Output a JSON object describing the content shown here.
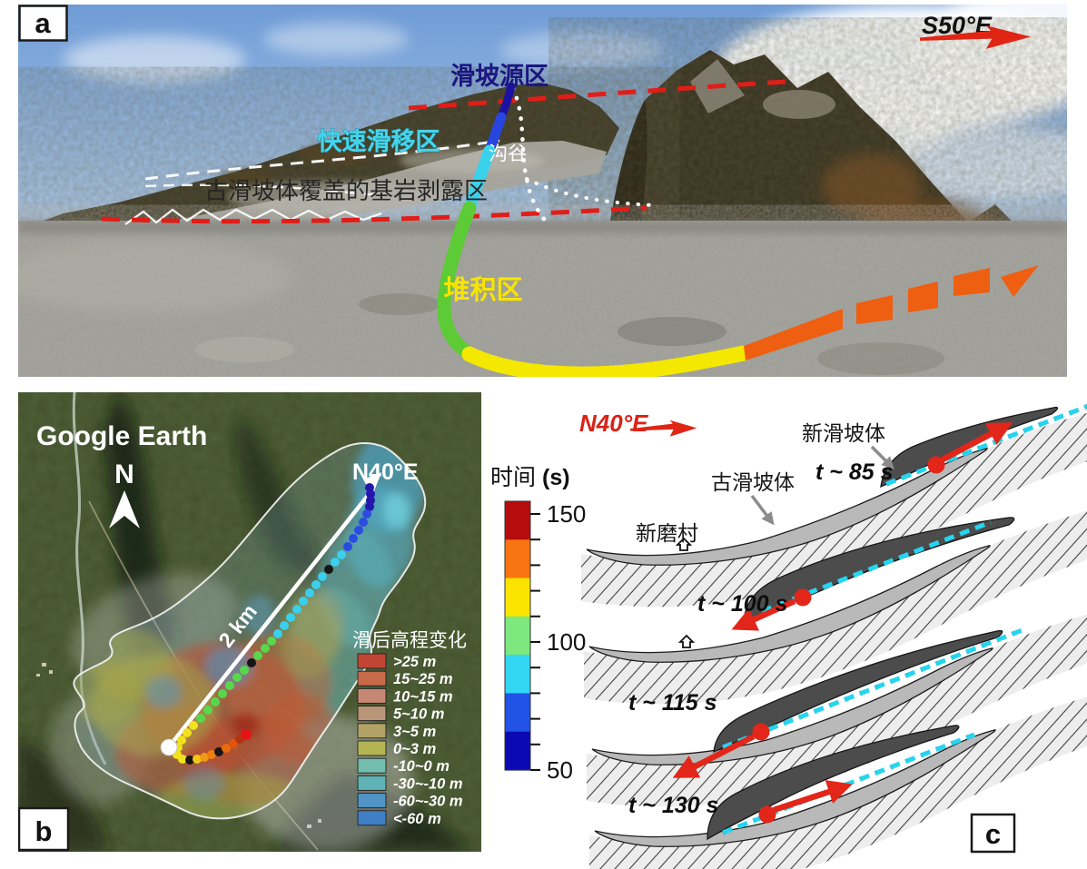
{
  "panel_a": {
    "label": "a",
    "direction_label": "S50°E",
    "annotations": {
      "source_zone": "滑坡源区",
      "rapid_slide_zone": "快速滑移区",
      "gully": "沟谷",
      "bedrock_exposure_zone": "古滑坡体覆盖的基岩剥露区",
      "deposit_zone": "堆积区"
    }
  },
  "panel_b": {
    "label": "b",
    "watermark": "Google Earth",
    "north_label": "N",
    "direction_label": "N40°E",
    "scale_label": "2 km",
    "legend": {
      "title": "滑后高程变化",
      "entries": [
        {
          "label": ">25 m",
          "color": "#c24534"
        },
        {
          "label": "15~25 m",
          "color": "#c66a4a"
        },
        {
          "label": "10~15 m",
          "color": "#c68874"
        },
        {
          "label": "5~10 m",
          "color": "#b99678"
        },
        {
          "label": "3~5 m",
          "color": "#b3a266"
        },
        {
          "label": "0~3 m",
          "color": "#b4b455"
        },
        {
          "label": "-10~0 m",
          "color": "#72bdae"
        },
        {
          "label": "-30~-10 m",
          "color": "#5fb3b4"
        },
        {
          "label": "-60~-30 m",
          "color": "#4f94c4"
        },
        {
          "label": "<-60 m",
          "color": "#3f7fc4"
        }
      ]
    },
    "trajectory_dots": [
      [
        387,
        105,
        "#2517ad"
      ],
      [
        388,
        112,
        "#2517ad"
      ],
      [
        388,
        119,
        "#2517ad"
      ],
      [
        387,
        126,
        "#2517ad"
      ],
      [
        384,
        134,
        "#2b4ce0"
      ],
      [
        380,
        143,
        "#2b4ce0"
      ],
      [
        375,
        152,
        "#2b4ce0"
      ],
      [
        369,
        161,
        "#2b4ce0"
      ],
      [
        363,
        170,
        "#2b4ce0"
      ],
      [
        356,
        179,
        "#38d0ee"
      ],
      [
        349,
        187,
        "#38d0ee"
      ],
      [
        342,
        195,
        "#161616"
      ],
      [
        335,
        203,
        "#38d0ee"
      ],
      [
        328,
        212,
        "#38d0ee"
      ],
      [
        321,
        221,
        "#38d0ee"
      ],
      [
        314,
        230,
        "#38d0ee"
      ],
      [
        307,
        239,
        "#38d0ee"
      ],
      [
        300,
        248,
        "#38d0ee"
      ],
      [
        293,
        257,
        "#38d0ee"
      ],
      [
        286,
        266,
        "#38d0ee"
      ],
      [
        279,
        274,
        "#57d84b"
      ],
      [
        272,
        282,
        "#57d84b"
      ],
      [
        264,
        290,
        "#57d84b"
      ],
      [
        257,
        298,
        "#161616"
      ],
      [
        249,
        306,
        "#57d84b"
      ],
      [
        241,
        314,
        "#57d84b"
      ],
      [
        233,
        323,
        "#57d84b"
      ],
      [
        225,
        332,
        "#57d84b"
      ],
      [
        217,
        341,
        "#57d84b"
      ],
      [
        209,
        350,
        "#57d84b"
      ],
      [
        201,
        359,
        "#57d84b"
      ],
      [
        193,
        367,
        "#f2e21e"
      ],
      [
        186,
        375,
        "#f2e21e"
      ],
      [
        180,
        383,
        "#f2e21e"
      ],
      [
        176,
        391,
        "#f2e21e"
      ],
      [
        175,
        399,
        "#f2e21e"
      ],
      [
        181,
        404,
        "#f2e21e"
      ],
      [
        189,
        405,
        "#161616"
      ],
      [
        197,
        404,
        "#f2c818"
      ],
      [
        205,
        402,
        "#f09b16"
      ],
      [
        213,
        399,
        "#ee7d12"
      ],
      [
        221,
        396,
        "#161616"
      ],
      [
        229,
        392,
        "#ec6a0e"
      ],
      [
        237,
        387,
        "#e2540c"
      ],
      [
        244,
        382,
        "#b23312"
      ],
      [
        251,
        377,
        "#e51414",
        6
      ],
      [
        166,
        391,
        "#ffffff",
        9
      ]
    ]
  },
  "time_colorbar": {
    "title": "时间",
    "unit": "(s)",
    "min": 50,
    "max": 150,
    "tick_step": 10,
    "labeled_ticks": [
      150,
      100,
      50
    ],
    "segments_top_to_bottom": [
      "#b50d0d",
      "#f87410",
      "#fbe400",
      "#7de87d",
      "#32d6f2",
      "#2153e6",
      "#0b0ab2"
    ]
  },
  "panel_c": {
    "label": "c",
    "direction_label": "N40°E",
    "labels": {
      "new_landslide": "新滑坡体",
      "old_landslide": "古滑坡体",
      "village": "新磨村"
    },
    "snapshots": [
      {
        "time": "t ~ 85 s"
      },
      {
        "time": "t ~ 100 s"
      },
      {
        "time": "t ~ 115 s"
      },
      {
        "time": "t ~ 130 s"
      }
    ]
  }
}
